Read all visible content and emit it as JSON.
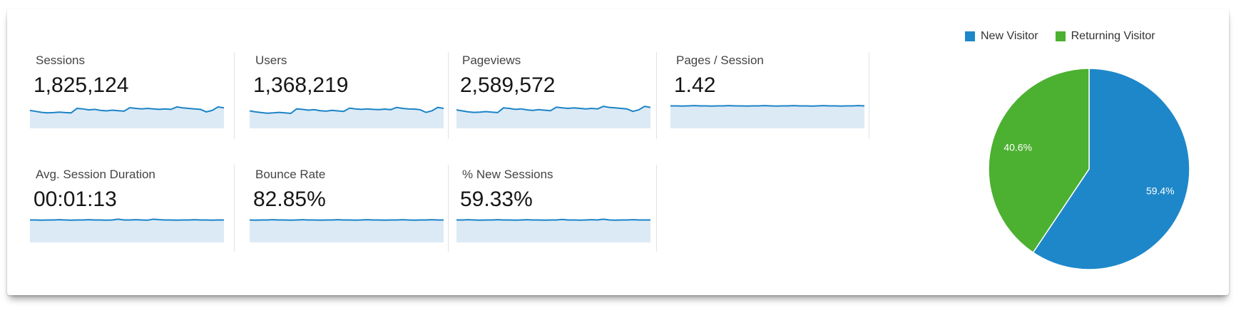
{
  "metrics": [
    {
      "label": "Sessions",
      "value": "1,825,124",
      "sparkline": [
        0.72,
        0.68,
        0.64,
        0.62,
        0.63,
        0.65,
        0.63,
        0.62,
        0.8,
        0.78,
        0.74,
        0.76,
        0.72,
        0.7,
        0.73,
        0.71,
        0.69,
        0.83,
        0.8,
        0.78,
        0.8,
        0.78,
        0.76,
        0.78,
        0.76,
        0.86,
        0.82,
        0.8,
        0.78,
        0.76,
        0.66,
        0.72,
        0.86,
        0.82
      ]
    },
    {
      "label": "Users",
      "value": "1,368,219",
      "sparkline": [
        0.7,
        0.66,
        0.63,
        0.61,
        0.62,
        0.64,
        0.62,
        0.6,
        0.78,
        0.76,
        0.73,
        0.75,
        0.71,
        0.69,
        0.72,
        0.7,
        0.68,
        0.81,
        0.78,
        0.76,
        0.78,
        0.76,
        0.75,
        0.77,
        0.75,
        0.84,
        0.8,
        0.78,
        0.77,
        0.75,
        0.64,
        0.7,
        0.84,
        0.8
      ]
    },
    {
      "label": "Pageviews",
      "value": "2,589,572",
      "sparkline": [
        0.74,
        0.7,
        0.66,
        0.64,
        0.65,
        0.67,
        0.65,
        0.63,
        0.82,
        0.8,
        0.76,
        0.78,
        0.74,
        0.72,
        0.75,
        0.73,
        0.71,
        0.85,
        0.82,
        0.8,
        0.82,
        0.8,
        0.78,
        0.8,
        0.78,
        0.88,
        0.84,
        0.82,
        0.8,
        0.78,
        0.68,
        0.74,
        0.88,
        0.84
      ]
    },
    {
      "label": "Pages / Session",
      "value": "1.42",
      "sparkline": [
        0.9,
        0.9,
        0.89,
        0.9,
        0.91,
        0.9,
        0.9,
        0.89,
        0.9,
        0.9,
        0.91,
        0.9,
        0.9,
        0.89,
        0.9,
        0.9,
        0.91,
        0.9,
        0.89,
        0.9,
        0.9,
        0.91,
        0.9,
        0.9,
        0.89,
        0.9,
        0.91,
        0.9,
        0.9,
        0.89,
        0.9,
        0.9,
        0.91,
        0.9
      ]
    },
    {
      "label": "Avg. Session Duration",
      "value": "00:01:13",
      "sparkline": [
        0.9,
        0.9,
        0.89,
        0.9,
        0.9,
        0.91,
        0.9,
        0.89,
        0.9,
        0.9,
        0.91,
        0.9,
        0.9,
        0.89,
        0.9,
        0.93,
        0.9,
        0.9,
        0.91,
        0.9,
        0.89,
        0.93,
        0.91,
        0.9,
        0.9,
        0.89,
        0.9,
        0.9,
        0.91,
        0.9,
        0.9,
        0.89,
        0.9,
        0.9
      ]
    },
    {
      "label": "Bounce Rate",
      "value": "82.85%",
      "sparkline": [
        0.9,
        0.89,
        0.9,
        0.9,
        0.91,
        0.9,
        0.9,
        0.89,
        0.9,
        0.91,
        0.9,
        0.9,
        0.89,
        0.9,
        0.9,
        0.91,
        0.9,
        0.9,
        0.89,
        0.9,
        0.91,
        0.9,
        0.9,
        0.89,
        0.9,
        0.9,
        0.91,
        0.9,
        0.89,
        0.9,
        0.9,
        0.91,
        0.9,
        0.9
      ]
    },
    {
      "label": "% New Sessions",
      "value": "59.33%",
      "sparkline": [
        0.9,
        0.9,
        0.91,
        0.9,
        0.89,
        0.9,
        0.9,
        0.91,
        0.9,
        0.9,
        0.89,
        0.9,
        0.91,
        0.9,
        0.9,
        0.89,
        0.9,
        0.9,
        0.92,
        0.9,
        0.9,
        0.89,
        0.9,
        0.91,
        0.9,
        0.93,
        0.9,
        0.89,
        0.9,
        0.9,
        0.91,
        0.9,
        0.9,
        0.9
      ]
    }
  ],
  "chart_data": {
    "type": "pie",
    "categories": [
      "New Visitor",
      "Returning Visitor"
    ],
    "values": [
      59.4,
      40.6
    ],
    "data_labels": [
      "59.4%",
      "40.6%"
    ],
    "colors": [
      "#1e87c9",
      "#4cb030"
    ],
    "legend_position": "top-right",
    "start_angle_deg": 0,
    "direction": "clockwise",
    "label_radius_ratio": 0.74
  },
  "style": {
    "spark_line_color": "#1c84c6",
    "spark_fill_color": "#dceaf6",
    "divider_color": "#e2e2e2"
  }
}
